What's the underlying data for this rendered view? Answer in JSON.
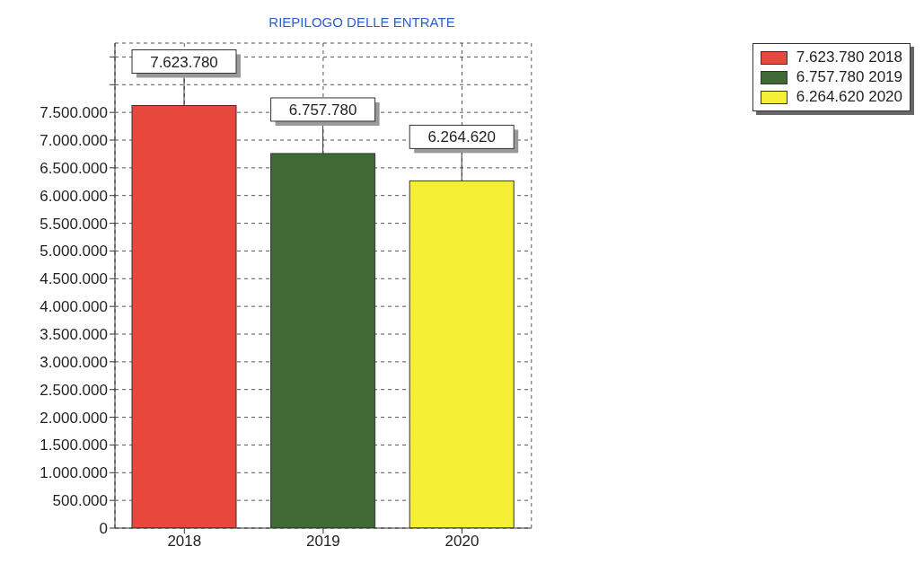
{
  "chart_data": {
    "type": "bar",
    "title": "RIEPILOGO DELLE ENTRATE",
    "categories": [
      "2018",
      "2019",
      "2020"
    ],
    "stacked": true,
    "series": [
      {
        "name": "7.623.780 2018",
        "color": "#e8473c",
        "values": [
          7623780,
          null,
          null
        ],
        "value_labels": [
          "7.623.780",
          null,
          null
        ]
      },
      {
        "name": "6.757.780 2019",
        "color": "#3f6a36",
        "values": [
          null,
          6757780,
          null
        ],
        "value_labels": [
          null,
          "6.757.780",
          null
        ]
      },
      {
        "name": "6.264.620 2020",
        "color": "#f4ef35",
        "values": [
          null,
          null,
          6264620
        ],
        "value_labels": [
          null,
          null,
          "6.264.620"
        ]
      }
    ],
    "ylim": [
      0,
      8750000
    ],
    "yticks": [
      {
        "value": 0,
        "label": "0"
      },
      {
        "value": 500000,
        "label": "500.000"
      },
      {
        "value": 1000000,
        "label": "1.000.000"
      },
      {
        "value": 1500000,
        "label": "1.500.000"
      },
      {
        "value": 2000000,
        "label": "2.000.000"
      },
      {
        "value": 2500000,
        "label": "2.500.000"
      },
      {
        "value": 3000000,
        "label": "3.000.000"
      },
      {
        "value": 3500000,
        "label": "3.500.000"
      },
      {
        "value": 4000000,
        "label": "4.000.000"
      },
      {
        "value": 4500000,
        "label": "4.500.000"
      },
      {
        "value": 5000000,
        "label": "5.000.000"
      },
      {
        "value": 5500000,
        "label": "5.500.000"
      },
      {
        "value": 6000000,
        "label": "6.000.000"
      },
      {
        "value": 6500000,
        "label": "6.500.000"
      },
      {
        "value": 7000000,
        "label": "7.000.000"
      },
      {
        "value": 7500000,
        "label": "7.500.000"
      },
      {
        "value": 8000000,
        "label": null
      },
      {
        "value": 8500000,
        "label": null
      }
    ],
    "grid": true,
    "legend": "top right"
  }
}
